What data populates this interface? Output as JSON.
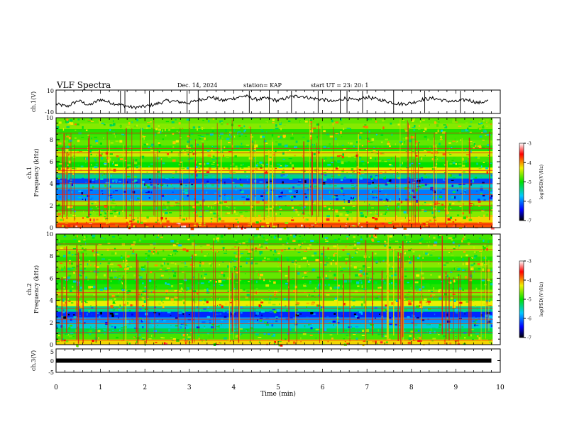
{
  "header": {
    "title": "VLF  Spectra",
    "date": "Dec. 14, 2024",
    "station": "station= KAP",
    "start_ut": "start  UT  =   23: 20: 1"
  },
  "chart_data": [
    {
      "type": "line",
      "panel": "ch1-waveform",
      "ylabel": "ch.1(V)",
      "ylim": [
        -10,
        10
      ],
      "ytick_labels": [
        "10",
        "-10"
      ],
      "xlim": [
        0,
        10
      ],
      "x": [
        0,
        0.25,
        0.5,
        0.75,
        1,
        1.25,
        1.5,
        1.75,
        2,
        2.25,
        2.5,
        2.75,
        3,
        3.25,
        3.5,
        3.75,
        4,
        4.25,
        4.5,
        4.75,
        5,
        5.25,
        5.5,
        5.75,
        6,
        6.25,
        6.5,
        6.75,
        7,
        7.25,
        7.5,
        7.75,
        8,
        8.25,
        8.5,
        8.75,
        9,
        9.25,
        9.5,
        9.75
      ],
      "y": [
        -2,
        -4,
        1,
        -3,
        2,
        -1,
        -3,
        -5,
        -4,
        -2,
        1,
        0,
        -1,
        2,
        4,
        1,
        3,
        5,
        2,
        3,
        1,
        4,
        5,
        3,
        2,
        0,
        3,
        1,
        4,
        2,
        0,
        -2,
        -1,
        2,
        3,
        1,
        0,
        2,
        -1,
        1
      ]
    },
    {
      "type": "heatmap",
      "panel": "ch1-spectrogram",
      "ylabel": "ch.1\nFrequency  (kHz)",
      "ylim": [
        0,
        10
      ],
      "xlim": [
        0,
        10
      ],
      "ytick_labels": [
        "0",
        "2",
        "4",
        "6",
        "8",
        "10"
      ],
      "colorbar": {
        "label": "log(PSD)(V²/Hz)",
        "range": [
          -7,
          -3
        ],
        "tick_labels": [
          "-3",
          "-4",
          "-5",
          "-6",
          "-7"
        ]
      },
      "frequency_kHz": [
        0.25,
        0.75,
        1.25,
        1.75,
        2.25,
        2.75,
        3.25,
        3.75,
        4.25,
        4.75,
        5.25,
        5.75,
        6.25,
        6.75,
        7.25,
        7.75,
        8.25,
        8.75,
        9.25,
        9.75
      ],
      "log_psd": [
        -3.8,
        -4.2,
        -4.6,
        -4.9,
        -4.5,
        -5.9,
        -6.0,
        -5.6,
        -6.2,
        -5.4,
        -4.3,
        -5.0,
        -4.8,
        -4.4,
        -4.9,
        -4.7,
        -4.8,
        -4.9,
        -4.6,
        -4.7
      ],
      "line_frequencies_kHz": [
        0.3,
        1.6,
        2.0,
        2.4,
        3.0,
        3.6,
        4.0,
        4.9,
        5.2,
        6.8,
        7.2,
        8.6
      ]
    },
    {
      "type": "heatmap",
      "panel": "ch2-spectrogram",
      "ylabel": "ch.2\nFrequency  (kHz)",
      "ylim": [
        0,
        10
      ],
      "xlim": [
        0,
        10
      ],
      "ytick_labels": [
        "0",
        "2",
        "4",
        "6",
        "8",
        "10"
      ],
      "colorbar": {
        "label": "log(PSD)(V²/Hz)",
        "range": [
          -7,
          -3
        ],
        "tick_labels": [
          "-3",
          "-4",
          "-5",
          "-6",
          "-7"
        ]
      },
      "frequency_kHz": [
        0.25,
        0.75,
        1.25,
        1.75,
        2.25,
        2.75,
        3.25,
        3.75,
        4.25,
        4.75,
        5.25,
        5.75,
        6.25,
        6.75,
        7.25,
        7.75,
        8.25,
        8.75,
        9.25,
        9.75
      ],
      "log_psd": [
        -4.2,
        -4.8,
        -5.2,
        -5.6,
        -5.9,
        -6.3,
        -5.4,
        -4.3,
        -4.8,
        -4.6,
        -4.9,
        -5.0,
        -4.7,
        -4.8,
        -4.6,
        -4.9,
        -4.7,
        -4.5,
        -4.9,
        -4.8
      ],
      "line_frequencies_kHz": [
        0.4,
        1.1,
        1.9,
        2.3,
        3.3,
        4.3,
        4.7,
        5.9,
        6.6,
        7.5,
        8.6,
        9.1
      ]
    },
    {
      "type": "line",
      "panel": "ch3-waveform",
      "ylabel": "ch.3(V)",
      "ylim": [
        -5,
        5
      ],
      "ytick_labels": [
        "5",
        "0",
        "-5"
      ],
      "xlim": [
        0,
        10
      ],
      "xlabel": "Time  (min)",
      "xtick_labels": [
        "0",
        "1",
        "2",
        "3",
        "4",
        "5",
        "6",
        "7",
        "8",
        "9",
        "10"
      ],
      "x": [
        0,
        9.8
      ],
      "y": [
        0,
        0
      ]
    }
  ]
}
